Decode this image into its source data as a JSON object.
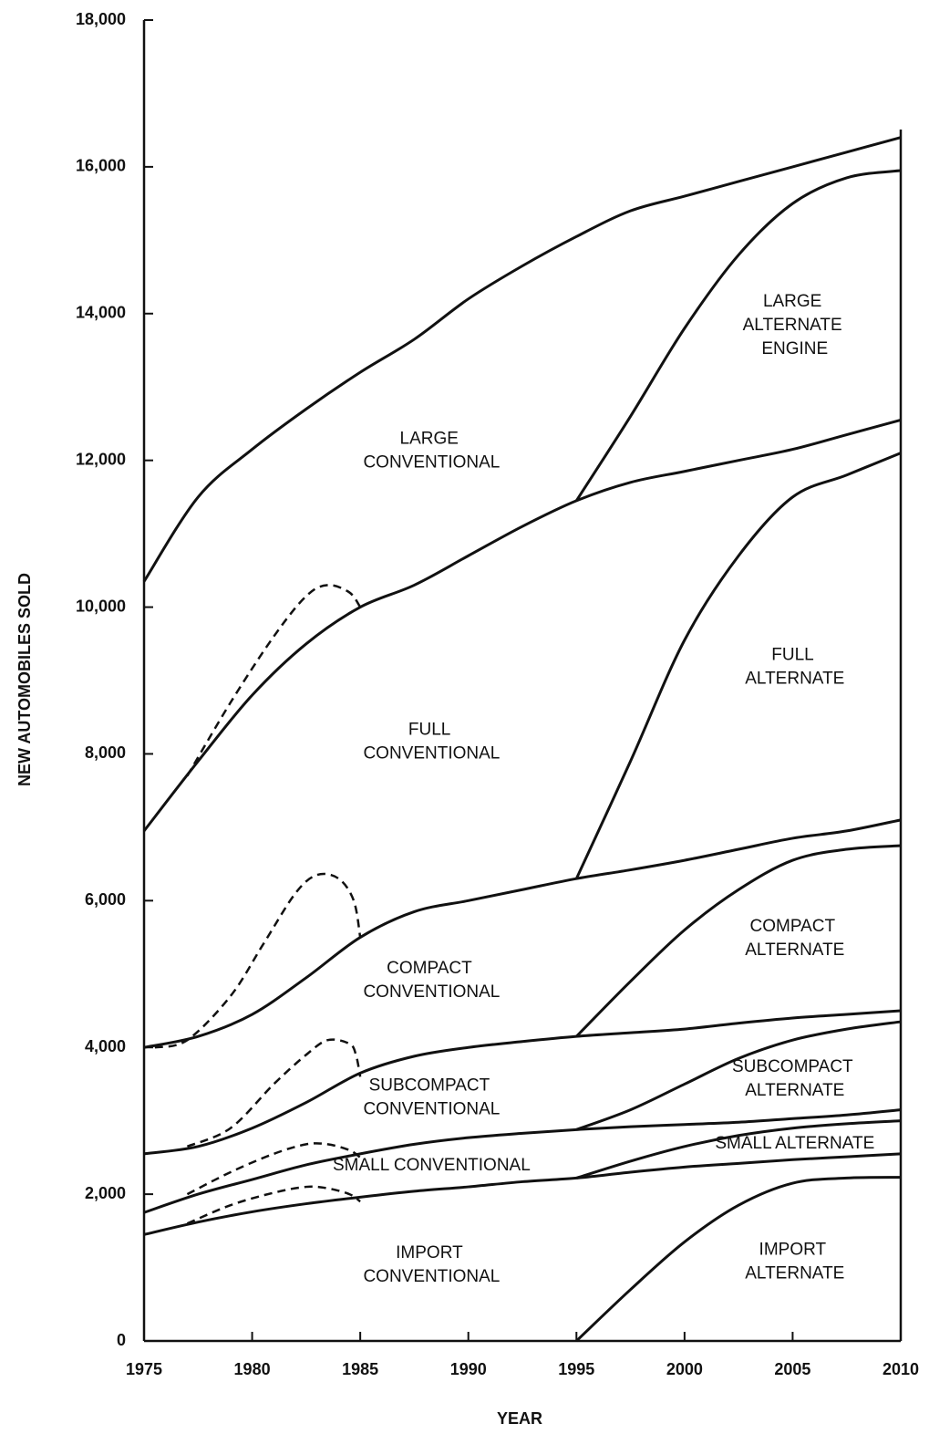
{
  "chart_data": {
    "type": "stacked_line",
    "x_label": "YEAR",
    "y_label": "NEW AUTOMOBILES SOLD",
    "xlim": [
      1975,
      2010
    ],
    "xticks": [
      1975,
      1980,
      1985,
      1990,
      1995,
      2000,
      2005,
      2010
    ],
    "ylim": [
      0,
      18000
    ],
    "yticks": [
      0,
      {
        "value": 2000,
        "label": "2,000"
      },
      {
        "value": 4000,
        "label": "4,000"
      },
      {
        "value": 6000,
        "label": "6,000"
      },
      {
        "value": 8000,
        "label": "8,000"
      },
      {
        "value": 10000,
        "label": "10,000"
      },
      {
        "value": 12000,
        "label": "12,000"
      },
      {
        "value": 14000,
        "label": "14,000"
      },
      {
        "value": 16000,
        "label": "16,000"
      },
      {
        "value": 18000,
        "label": "18,000"
      }
    ],
    "x": [
      1975,
      1977.5,
      1980,
      1982.5,
      1985,
      1987.5,
      1990,
      1992.5,
      1995,
      1997.5,
      2000,
      2002.5,
      2005,
      2007.5,
      2010
    ],
    "series": [
      {
        "name": "IMPORT ALTERNATE",
        "color": "#111111",
        "values": [
          0,
          0,
          0,
          0,
          0,
          0,
          0,
          0,
          0,
          700,
          1350,
          1850,
          2150,
          2220,
          2230
        ]
      },
      {
        "name": "IMPORT CONVENTIONAL",
        "color": "#111111",
        "values": [
          1450,
          1620,
          1760,
          1870,
          1960,
          2040,
          2100,
          2170,
          2220,
          1600,
          1020,
          570,
          320,
          290,
          320
        ]
      },
      {
        "name": "SMALL ALTERNATE",
        "color": "#111111",
        "values": [
          0,
          0,
          0,
          0,
          0,
          0,
          0,
          0,
          0,
          150,
          280,
          380,
          430,
          450,
          450
        ]
      },
      {
        "name": "SMALL CONVENTIONAL",
        "color": "#111111",
        "values": [
          300,
          380,
          440,
          530,
          590,
          640,
          670,
          660,
          660,
          470,
          300,
          180,
          130,
          120,
          150
        ]
      },
      {
        "name": "SUBCOMPACT ALTERNATE",
        "color": "#111111",
        "values": [
          0,
          0,
          0,
          0,
          0,
          0,
          0,
          0,
          0,
          230,
          550,
          870,
          1070,
          1170,
          1200
        ]
      },
      {
        "name": "SUBCOMPACT CONVENTIONAL",
        "color": "#111111",
        "values": [
          800,
          650,
          700,
          850,
          1100,
          1200,
          1230,
          1250,
          1270,
          1050,
          750,
          480,
          300,
          200,
          150
        ]
      },
      {
        "name": "COMPACT ALTERNATE",
        "color": "#111111",
        "values": [
          0,
          0,
          0,
          0,
          0,
          0,
          0,
          0,
          0,
          700,
          1350,
          1820,
          2150,
          2250,
          2250
        ]
      },
      {
        "name": "COMPACT CONVENTIONAL",
        "color": "#111111",
        "values": [
          1450,
          1500,
          1550,
          1700,
          1850,
          1970,
          2000,
          2070,
          2150,
          1520,
          950,
          550,
          300,
          250,
          350
        ]
      },
      {
        "name": "FULL ALTERNATE",
        "color": "#111111",
        "values": [
          0,
          0,
          0,
          0,
          0,
          0,
          0,
          0,
          0,
          1480,
          3000,
          4000,
          4650,
          4850,
          5000
        ]
      },
      {
        "name": "FULL CONVENTIONAL",
        "color": "#111111",
        "values": [
          2950,
          3750,
          4350,
          4550,
          4500,
          4450,
          4700,
          4950,
          5150,
          3800,
          2300,
          1300,
          650,
          550,
          450
        ]
      },
      {
        "name": "LARGE ALTERNATE ENGINE",
        "color": "#111111",
        "values": [
          0,
          0,
          0,
          0,
          0,
          0,
          0,
          0,
          0,
          900,
          1950,
          2800,
          3350,
          3500,
          3400
        ]
      },
      {
        "name": "LARGE CONVENTIONAL",
        "color": "#111111",
        "values": [
          3400,
          3600,
          3350,
          3200,
          3200,
          3350,
          3500,
          3550,
          3600,
          2800,
          1800,
          1000,
          500,
          350,
          450
        ]
      }
    ],
    "dashed_lines": [
      {
        "x": [
          1977,
          1979,
          1981,
          1982.5,
          1983.5,
          1984.5,
          1985
        ],
        "values": [
          7700,
          8700,
          9600,
          10150,
          10300,
          10200,
          10000
        ]
      },
      {
        "x": [
          1975.5,
          1977,
          1979,
          1980.5,
          1982,
          1983,
          1984,
          1984.7,
          1985
        ],
        "values": [
          4000,
          4100,
          4700,
          5400,
          6100,
          6350,
          6300,
          6000,
          5500
        ]
      },
      {
        "x": [
          1977,
          1979,
          1981,
          1982.5,
          1983.5,
          1984.5,
          1984.8,
          1985
        ],
        "values": [
          2650,
          2900,
          3500,
          3900,
          4100,
          4050,
          3900,
          3600
        ]
      },
      {
        "x": [
          1977,
          1979,
          1981,
          1982.5,
          1983.5,
          1984.5,
          1985
        ],
        "values": [
          2000,
          2300,
          2550,
          2680,
          2680,
          2600,
          2500
        ]
      },
      {
        "x": [
          1977,
          1979,
          1981,
          1982.5,
          1983.5,
          1984.5,
          1985
        ],
        "values": [
          1600,
          1850,
          2020,
          2100,
          2080,
          2000,
          1900
        ]
      }
    ]
  }
}
